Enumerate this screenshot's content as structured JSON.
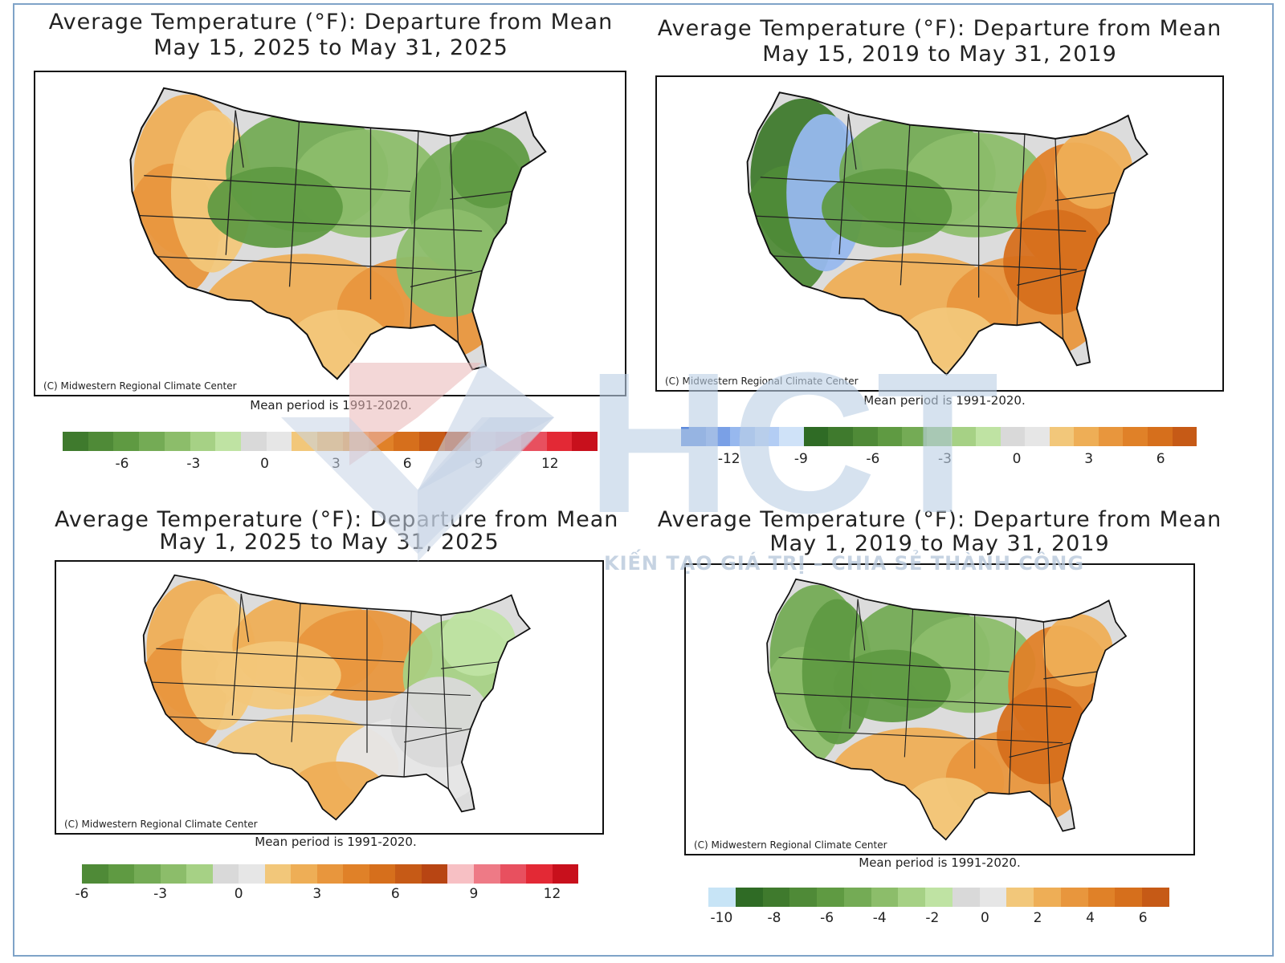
{
  "watermark": {
    "logo_text": "HCT",
    "slogan": "KIẾN TẠO GIÁ TRỊ – CHIA SẺ THÀNH CÔNG"
  },
  "maps": [
    {
      "title_line1": "Average Temperature (°F): Departure from Mean",
      "title_line2": "May 15, 2025 to May 31, 2025",
      "credit": "(C) Midwestern Regional Climate Center",
      "mean_period": "Mean period is 1991-2020.",
      "legend": {
        "colors": [
          "#3f7a2d",
          "#4f8a37",
          "#5f9a42",
          "#74ab55",
          "#8cbd6a",
          "#a6d185",
          "#bfe3a3",
          "#d9d9d9",
          "#e6e6e6",
          "#f2c77a",
          "#eeae56",
          "#e8963d",
          "#e08128",
          "#d66f1c",
          "#c65a16",
          "#b84513",
          "#f2a6ad",
          "#ee7a86",
          "#e8505f",
          "#e32935",
          "#c8101c"
        ],
        "ticks": [
          {
            "label": "-6",
            "v": -6
          },
          {
            "label": "-3",
            "v": -3
          },
          {
            "label": "0",
            "v": 0
          },
          {
            "label": "3",
            "v": 3
          },
          {
            "label": "6",
            "v": 6
          },
          {
            "label": "9",
            "v": 9
          },
          {
            "label": "12",
            "v": 12
          }
        ],
        "range": [
          -8.5,
          14
        ]
      },
      "regions": {
        "west": "warm",
        "north": "cool",
        "south": "warm",
        "east": "cool"
      }
    },
    {
      "title_line1": "Average Temperature (°F): Departure from Mean",
      "title_line2": "May 15, 2019 to May 31, 2019",
      "credit": "(C) Midwestern Regional Climate Center",
      "mean_period": "Mean period is 1991-2020.",
      "legend": {
        "colors": [
          "#5e8bdc",
          "#7aa0e6",
          "#97b8ee",
          "#b3cdf4",
          "#cfe2f8",
          "#2f6b25",
          "#3f7a2d",
          "#4f8a37",
          "#5f9a42",
          "#74ab55",
          "#8cbd6a",
          "#a6d185",
          "#bfe3a3",
          "#d9d9d9",
          "#e6e6e6",
          "#f2c77a",
          "#eeae56",
          "#e8963d",
          "#e08128",
          "#d66f1c",
          "#c65a16"
        ],
        "ticks": [
          {
            "label": "-12",
            "v": -12
          },
          {
            "label": "-9",
            "v": -9
          },
          {
            "label": "-6",
            "v": -6
          },
          {
            "label": "-3",
            "v": -3
          },
          {
            "label": "0",
            "v": 0
          },
          {
            "label": "3",
            "v": 3
          },
          {
            "label": "6",
            "v": 6
          }
        ],
        "range": [
          -14,
          7.5
        ]
      },
      "regions": {
        "west": "cold",
        "north": "cool",
        "south": "warm",
        "east": "hot"
      }
    },
    {
      "title_line1": "Average Temperature (°F): Departure from Mean",
      "title_line2": "May 1, 2025 to May 31, 2025",
      "credit": "(C) Midwestern Regional Climate Center",
      "mean_period": "Mean period is 1991-2020.",
      "legend": {
        "colors": [
          "#4f8a37",
          "#5f9a42",
          "#74ab55",
          "#8cbd6a",
          "#a6d185",
          "#d9d9d9",
          "#e6e6e6",
          "#f2c77a",
          "#eeae56",
          "#e8963d",
          "#e08128",
          "#d66f1c",
          "#c65a16",
          "#b84513",
          "#f7c0c4",
          "#ee7a86",
          "#e8505f",
          "#e32935",
          "#c8101c"
        ],
        "ticks": [
          {
            "label": "-6",
            "v": -6
          },
          {
            "label": "-3",
            "v": -3
          },
          {
            "label": "0",
            "v": 0
          },
          {
            "label": "3",
            "v": 3
          },
          {
            "label": "6",
            "v": 6
          },
          {
            "label": "9",
            "v": 9
          },
          {
            "label": "12",
            "v": 12
          }
        ],
        "range": [
          -6,
          13
        ]
      },
      "regions": {
        "west": "warm",
        "north": "warm",
        "south": "mild",
        "east": "mix"
      }
    },
    {
      "title_line1": "Average Temperature (°F): Departure from Mean",
      "title_line2": "May 1, 2019 to May 31, 2019",
      "credit": "(C) Midwestern Regional Climate Center",
      "mean_period": "Mean period is 1991-2020.",
      "legend": {
        "colors": [
          "#c7e4f6",
          "#2f6b25",
          "#3f7a2d",
          "#4f8a37",
          "#5f9a42",
          "#74ab55",
          "#8cbd6a",
          "#a6d185",
          "#bfe3a3",
          "#d9d9d9",
          "#e6e6e6",
          "#f2c77a",
          "#eeae56",
          "#e8963d",
          "#e08128",
          "#d66f1c",
          "#c65a16"
        ],
        "ticks": [
          {
            "label": "-10",
            "v": -10
          },
          {
            "label": "-8",
            "v": -8
          },
          {
            "label": "-6",
            "v": -6
          },
          {
            "label": "-4",
            "v": -4
          },
          {
            "label": "-2",
            "v": -2
          },
          {
            "label": "0",
            "v": 0
          },
          {
            "label": "2",
            "v": 2
          },
          {
            "label": "4",
            "v": 4
          },
          {
            "label": "6",
            "v": 6
          }
        ],
        "range": [
          -10.5,
          7
        ]
      },
      "regions": {
        "west": "cool",
        "north": "cool",
        "south": "warm",
        "east": "hot"
      }
    }
  ]
}
